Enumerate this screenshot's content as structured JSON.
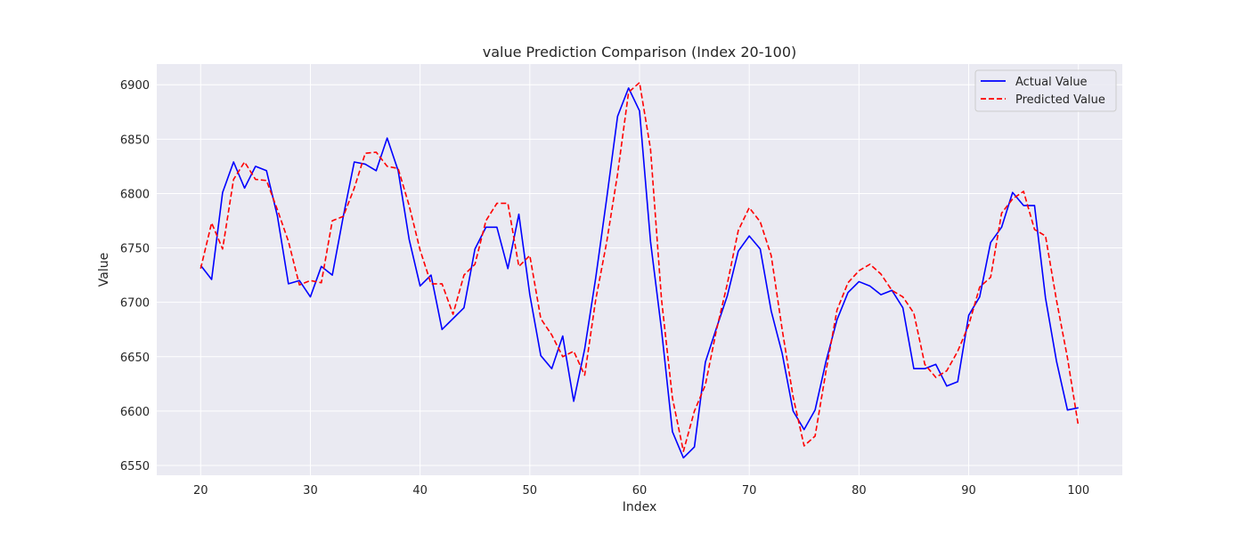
{
  "chart_data": {
    "type": "line",
    "title": "value Prediction Comparison (Index 20-100)",
    "xlabel": "Index",
    "ylabel": "Value",
    "xlim": [
      16,
      104
    ],
    "ylim": [
      6541,
      6919
    ],
    "xticks": [
      20,
      30,
      40,
      50,
      60,
      70,
      80,
      90,
      100
    ],
    "yticks": [
      6550,
      6600,
      6650,
      6700,
      6750,
      6800,
      6850,
      6900
    ],
    "grid": true,
    "background": "#eaeaf2",
    "legend_position": "top-right",
    "x": [
      20,
      21,
      22,
      23,
      24,
      25,
      26,
      27,
      28,
      29,
      30,
      31,
      32,
      33,
      34,
      35,
      36,
      37,
      38,
      39,
      40,
      41,
      42,
      43,
      44,
      45,
      46,
      47,
      48,
      49,
      50,
      51,
      52,
      53,
      54,
      55,
      56,
      57,
      58,
      59,
      60,
      61,
      62,
      63,
      64,
      65,
      66,
      67,
      68,
      69,
      70,
      71,
      72,
      73,
      74,
      75,
      76,
      77,
      78,
      79,
      80,
      81,
      82,
      83,
      84,
      85,
      86,
      87,
      88,
      89,
      90,
      91,
      92,
      93,
      94,
      95,
      96,
      97,
      98,
      99,
      100
    ],
    "series": [
      {
        "name": "Actual Value",
        "color": "#0000ff",
        "style": "solid",
        "values": [
          6734,
          6721,
          6801,
          6829,
          6805,
          6825,
          6821,
          6779,
          6717,
          6720,
          6705,
          6733,
          6725,
          6779,
          6829,
          6827,
          6821,
          6851,
          6821,
          6758,
          6715,
          6725,
          6675,
          6685,
          6695,
          6749,
          6769,
          6769,
          6731,
          6781,
          6707,
          6651,
          6639,
          6669,
          6609,
          6657,
          6722,
          6795,
          6871,
          6897,
          6876,
          6756,
          6675,
          6581,
          6557,
          6567,
          6645,
          6676,
          6706,
          6747,
          6761,
          6749,
          6692,
          6653,
          6600,
          6583,
          6601,
          6646,
          6684,
          6709,
          6719,
          6715,
          6707,
          6711,
          6695,
          6639,
          6639,
          6643,
          6623,
          6627,
          6688,
          6705,
          6755,
          6769,
          6801,
          6789,
          6789,
          6704,
          6646,
          6601,
          6603
        ]
      },
      {
        "name": "Predicted Value",
        "color": "#ff0000",
        "style": "dashed",
        "values": [
          6731,
          6773,
          6749,
          6813,
          6829,
          6813,
          6812,
          6785,
          6756,
          6716,
          6720,
          6718,
          6775,
          6779,
          6805,
          6837,
          6838,
          6825,
          6823,
          6789,
          6748,
          6717,
          6717,
          6689,
          6725,
          6735,
          6775,
          6791,
          6791,
          6733,
          6743,
          6685,
          6670,
          6650,
          6655,
          6633,
          6702,
          6755,
          6818,
          6893,
          6902,
          6841,
          6703,
          6612,
          6563,
          6600,
          6624,
          6674,
          6717,
          6766,
          6787,
          6774,
          6743,
          6675,
          6613,
          6568,
          6577,
          6637,
          6693,
          6718,
          6729,
          6735,
          6726,
          6711,
          6705,
          6690,
          6643,
          6631,
          6637,
          6655,
          6679,
          6714,
          6723,
          6782,
          6795,
          6802,
          6767,
          6761,
          6702,
          6649,
          6586
        ]
      }
    ]
  }
}
